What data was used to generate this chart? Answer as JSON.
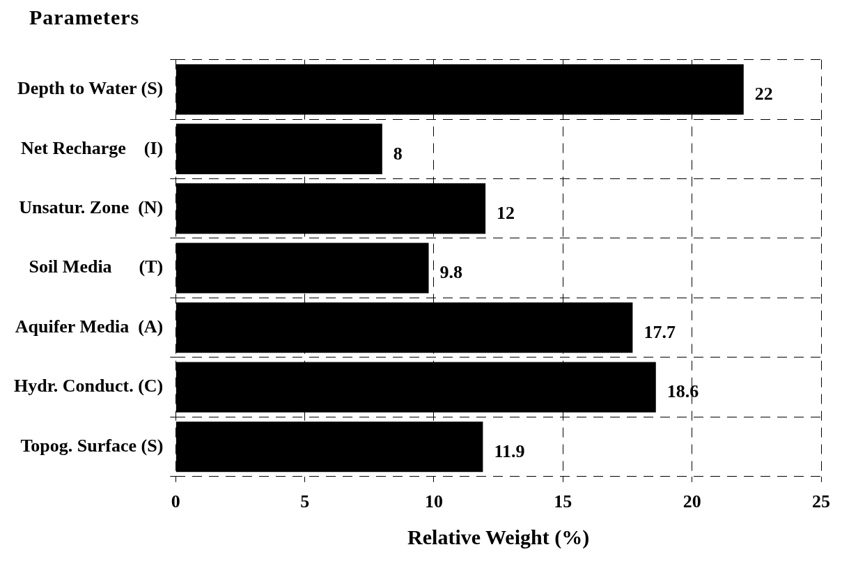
{
  "chart_data": {
    "type": "bar",
    "orientation": "horizontal",
    "ylabel": "Parameters",
    "xlabel": "Relative Weight (%)",
    "categories": [
      "Depth to Water (S)",
      "Net Recharge    (I)",
      "Unsatur. Zone  (N)",
      "Soil Media      (T)",
      "Aquifer Media  (A)",
      "Hydr. Conduct. (C)",
      "Topog. Surface (S)"
    ],
    "values": [
      22,
      8,
      12,
      9.8,
      17.7,
      18.6,
      11.9
    ],
    "color": "#000000",
    "data_labels": true,
    "xlim": [
      0,
      25
    ],
    "xticks": [
      0,
      5,
      10,
      15,
      20,
      25
    ],
    "grid": true,
    "legend": false
  }
}
